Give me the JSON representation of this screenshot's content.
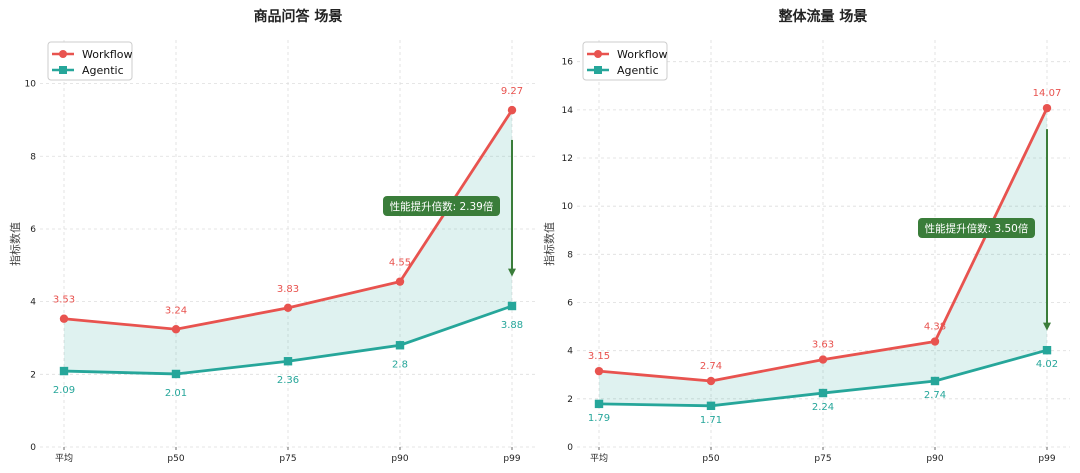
{
  "chart_data": [
    {
      "type": "line",
      "title": "商品问答 场景",
      "ylabel": "指标数值",
      "categories": [
        "平均",
        "p50",
        "p75",
        "p90",
        "p99"
      ],
      "ylim": [
        0,
        11.2
      ],
      "yticks": [
        "0",
        "2",
        "4",
        "6",
        "8",
        "10"
      ],
      "grid": true,
      "legend": "top-left",
      "series": [
        {
          "name": "Workflow",
          "values": [
            3.53,
            3.24,
            3.83,
            4.55,
            9.27
          ],
          "labels": [
            "3.53",
            "3.24",
            "3.83",
            "4.55",
            "9.27"
          ],
          "color": "#e8534f"
        },
        {
          "name": "Agentic",
          "values": [
            2.09,
            2.01,
            2.36,
            2.8,
            3.88
          ],
          "labels": [
            "2.09",
            "2.01",
            "2.36",
            "2.8",
            "3.88"
          ],
          "color": "#26a69a"
        }
      ],
      "annotation": {
        "text": "性能提升倍数: 2.39倍",
        "arrow_from": 8.45,
        "arrow_to": 4.8,
        "color": "#3a7d3a"
      }
    },
    {
      "type": "line",
      "title": "整体流量 场景",
      "ylabel": "指标数值",
      "categories": [
        "平均",
        "p50",
        "p75",
        "p90",
        "p99"
      ],
      "ylim": [
        0,
        16.9
      ],
      "yticks": [
        "0",
        "2",
        "4",
        "6",
        "8",
        "10",
        "12",
        "14",
        "16"
      ],
      "grid": true,
      "legend": "top-left",
      "series": [
        {
          "name": "Workflow",
          "values": [
            3.15,
            2.74,
            3.63,
            4.38,
            14.07
          ],
          "labels": [
            "3.15",
            "2.74",
            "3.63",
            "4.38",
            "14.07"
          ],
          "color": "#e8534f"
        },
        {
          "name": "Agentic",
          "values": [
            1.79,
            1.71,
            2.24,
            2.74,
            4.02
          ],
          "labels": [
            "1.79",
            "1.71",
            "2.24",
            "2.74",
            "4.02"
          ],
          "color": "#26a69a"
        }
      ],
      "annotation": {
        "text": "性能提升倍数: 3.50倍",
        "arrow_from": 13.2,
        "arrow_to": 5.0,
        "color": "#3a7d3a"
      }
    }
  ]
}
